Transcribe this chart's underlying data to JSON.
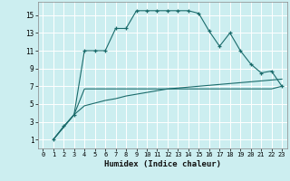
{
  "xlabel": "Humidex (Indice chaleur)",
  "bg_color": "#cceef0",
  "grid_color": "#ffffff",
  "line_color": "#1a6b6b",
  "xlim": [
    -0.5,
    23.5
  ],
  "ylim": [
    0,
    16.5
  ],
  "xticks": [
    0,
    1,
    2,
    3,
    4,
    5,
    6,
    7,
    8,
    9,
    10,
    11,
    12,
    13,
    14,
    15,
    16,
    17,
    18,
    19,
    20,
    21,
    22,
    23
  ],
  "yticks": [
    1,
    3,
    5,
    7,
    9,
    11,
    13,
    15
  ],
  "curve1_x": [
    1,
    2,
    3,
    4,
    5,
    6,
    7,
    8,
    9,
    10,
    11,
    12,
    13,
    14,
    15,
    16,
    17,
    18,
    19,
    20,
    21,
    22,
    23
  ],
  "curve1_y": [
    1,
    2.5,
    3.8,
    11,
    11,
    11,
    13.5,
    13.5,
    15.5,
    15.5,
    15.5,
    15.5,
    15.5,
    15.5,
    15.2,
    13.2,
    11.5,
    13,
    11,
    9.5,
    8.5,
    8.7,
    7
  ],
  "curve2_x": [
    1,
    3,
    4,
    5,
    6,
    7,
    8,
    9,
    10,
    11,
    12,
    13,
    14,
    15,
    16,
    17,
    18,
    19,
    20,
    21,
    22,
    23
  ],
  "curve2_y": [
    1,
    3.8,
    6.7,
    6.7,
    6.7,
    6.7,
    6.7,
    6.7,
    6.7,
    6.7,
    6.7,
    6.7,
    6.7,
    6.7,
    6.7,
    6.7,
    6.7,
    6.7,
    6.7,
    6.7,
    6.7,
    7.0
  ],
  "curve3_x": [
    1,
    3,
    4,
    5,
    6,
    7,
    8,
    9,
    10,
    11,
    12,
    13,
    14,
    15,
    16,
    17,
    18,
    19,
    20,
    21,
    22,
    23
  ],
  "curve3_y": [
    1,
    3.8,
    4.8,
    5.1,
    5.4,
    5.6,
    5.9,
    6.1,
    6.3,
    6.5,
    6.7,
    6.8,
    6.9,
    7.0,
    7.1,
    7.2,
    7.3,
    7.4,
    7.5,
    7.6,
    7.7,
    7.8
  ]
}
